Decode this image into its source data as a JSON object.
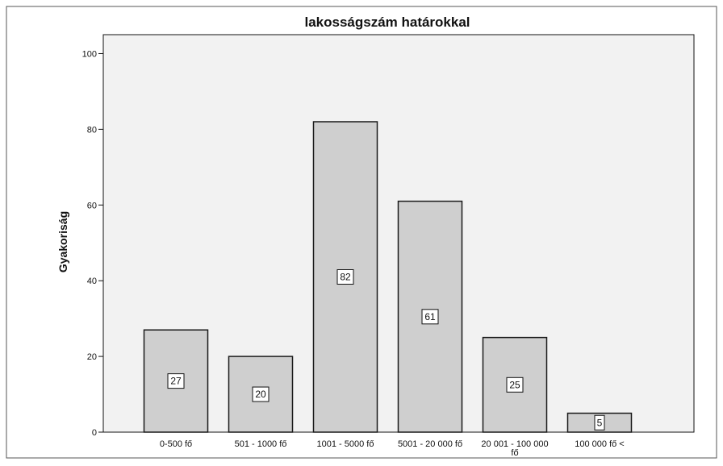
{
  "chart_data": {
    "type": "bar",
    "title": "lakosságszám határokkal",
    "xlabel": "",
    "ylabel": "Gyakoriság",
    "categories": [
      "0-500 fő",
      "501 - 1000 fő",
      "1001 - 5000 fő",
      "5001 - 20 000 fő",
      "20 001 - 100 000 fő",
      "100 000 fő <"
    ],
    "values": [
      27,
      20,
      82,
      61,
      25,
      5
    ],
    "data_labels": [
      "27",
      "20",
      "82",
      "61",
      "25",
      "5"
    ],
    "ylim": [
      0,
      105
    ],
    "yticks": [
      0,
      20,
      40,
      60,
      80,
      100
    ],
    "grid": false,
    "legend": "none",
    "colors": {
      "plot_background": "#f2f2f2",
      "bar_fill": "#cfcfcf",
      "bar_stroke": "#1a1a1a",
      "page_background": "#ffffff"
    }
  }
}
